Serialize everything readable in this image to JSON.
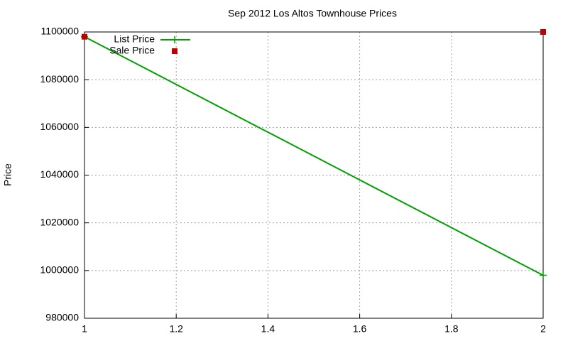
{
  "chart_data": {
    "type": "line",
    "title": "Sep 2012 Los Altos Townhouse Prices",
    "ylabel": "Price",
    "x": [
      1,
      2
    ],
    "series": [
      {
        "name": "List Price",
        "color": "#00a000",
        "style": "linespoints",
        "values": [
          1098000,
          998000
        ]
      },
      {
        "name": "Sale Price",
        "color": "#c00000",
        "style": "points",
        "values": [
          1098000,
          1100000
        ]
      }
    ],
    "xlim": [
      1,
      2
    ],
    "xticks": [
      1,
      1.2,
      1.4,
      1.6,
      1.8,
      2
    ],
    "ylim": [
      980000,
      1100000
    ],
    "yticks": [
      980000,
      1000000,
      1020000,
      1040000,
      1060000,
      1080000,
      1100000
    ],
    "grid": true,
    "legend": "top-left"
  }
}
